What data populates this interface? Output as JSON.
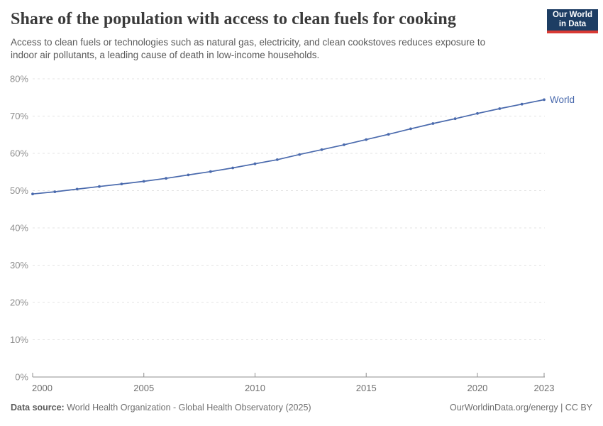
{
  "header": {
    "title": "Share of the population with access to clean fuels for cooking",
    "subtitle_lines": [
      "Access to clean fuels or technologies such as natural gas, electricity, and clean cookstoves reduces exposure to",
      "indoor air pollutants, a leading cause of death in low-income households."
    ],
    "logo": {
      "line1": "Our World",
      "line2": "in Data"
    }
  },
  "chart_data": {
    "type": "line",
    "title": "Share of the population with access to clean fuels for cooking",
    "x": [
      2000,
      2001,
      2002,
      2003,
      2004,
      2005,
      2006,
      2007,
      2008,
      2009,
      2010,
      2011,
      2012,
      2013,
      2014,
      2015,
      2016,
      2017,
      2018,
      2019,
      2020,
      2021,
      2022,
      2023
    ],
    "series": [
      {
        "name": "World",
        "color": "#4a6aad",
        "values": [
          49.1,
          49.7,
          50.4,
          51.1,
          51.8,
          52.5,
          53.3,
          54.2,
          55.1,
          56.1,
          57.2,
          58.3,
          59.7,
          61.0,
          62.3,
          63.7,
          65.1,
          66.6,
          68.0,
          69.3,
          70.7,
          72.0,
          73.2,
          74.4
        ]
      }
    ],
    "xlabel": "",
    "ylabel": "",
    "ylim": [
      0,
      80
    ],
    "yticks": [
      0,
      10,
      20,
      30,
      40,
      50,
      60,
      70,
      80
    ],
    "ytick_suffix": "%",
    "xticks": [
      2000,
      2005,
      2010,
      2015,
      2020,
      2023
    ],
    "grid": "horizontal-dashed",
    "legend_position": "end-of-line"
  },
  "footer": {
    "source_label": "Data source:",
    "source_value": " World Health Organization - Global Health Observatory (2025)",
    "credit": "OurWorldinData.org/energy | CC BY"
  },
  "colors": {
    "accent_line": "#4a6aad",
    "logo_bg": "#1d3d63",
    "logo_stripe": "#d93a34",
    "grid": "#e3e3e3",
    "axis": "#8f8f8f",
    "title_text": "#3a3a3a",
    "subtitle_text": "#5a5a5a",
    "footer_text": "#6e6e6e"
  }
}
